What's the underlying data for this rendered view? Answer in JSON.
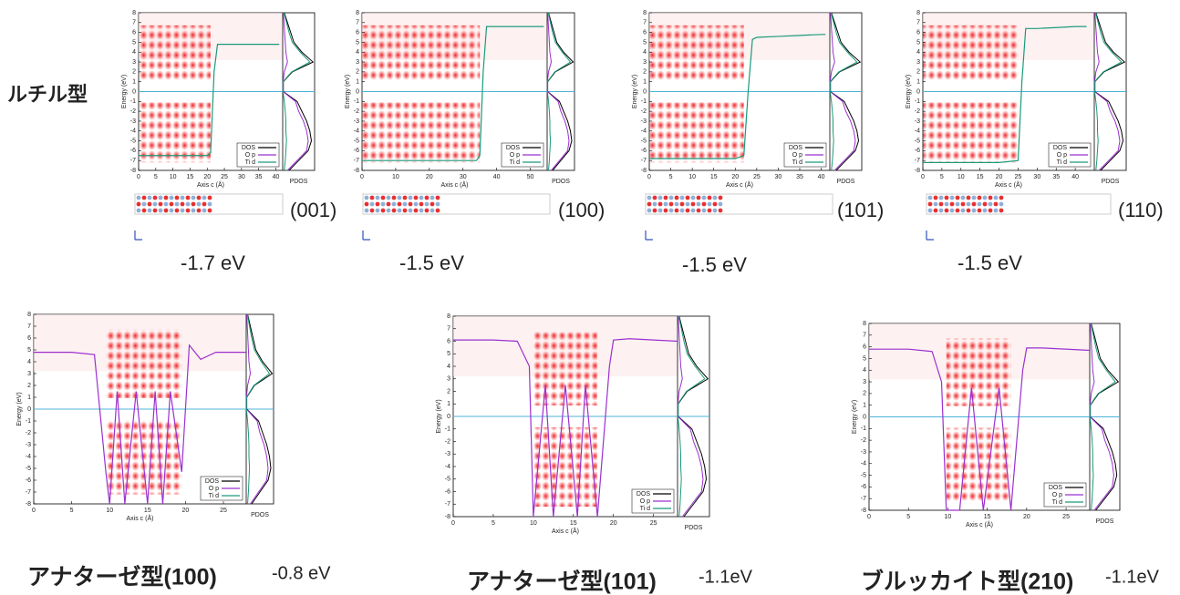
{
  "rutile_label": "ルチル型",
  "chart_data": [
    {
      "type": "line",
      "facet": "(001)",
      "energy": "-1.7 eV",
      "ylabel": "Energy (eV)",
      "xlabel": "Axis c (Å)",
      "pdos_label": "PDOS",
      "xlim": [
        0,
        42
      ],
      "xticks": [
        0,
        5,
        10,
        15,
        20,
        25,
        30,
        35,
        40
      ],
      "ylim": [
        -8,
        8
      ],
      "yticks": [
        -8,
        -7,
        -6,
        -5,
        -4,
        -3,
        -2,
        -1,
        0,
        1,
        2,
        3,
        4,
        5,
        6,
        7,
        8
      ],
      "pdos_energy": [
        -8,
        -7,
        -6,
        -5,
        -4,
        -3,
        -2,
        -1,
        0,
        1,
        2,
        3,
        4,
        5,
        6,
        7,
        8
      ],
      "pdos_xlim": [
        0,
        1
      ],
      "series": [
        {
          "name": "DOS",
          "color": "#000000",
          "pdos": [
            0.2,
            0.5,
            0.8,
            0.9,
            0.85,
            0.75,
            0.6,
            0.45,
            0.02,
            0.02,
            0.3,
            0.95,
            0.6,
            0.35,
            0.25,
            0.15,
            0.05
          ]
        },
        {
          "name": "O p",
          "color": "#9b30d0",
          "pdos": [
            0.15,
            0.45,
            0.75,
            0.8,
            0.75,
            0.65,
            0.5,
            0.4,
            0.01,
            0.01,
            0.05,
            0.15,
            0.1,
            0.08,
            0.06,
            0.04,
            0.02
          ]
        },
        {
          "name": "Ti d",
          "color": "#1a9a7a",
          "pdos": [
            0.05,
            0.08,
            0.1,
            0.12,
            0.1,
            0.1,
            0.08,
            0.05,
            0.01,
            0.01,
            0.28,
            0.85,
            0.55,
            0.3,
            0.2,
            0.12,
            0.04
          ],
          "x": [
            0,
            5,
            10,
            15,
            20,
            21,
            22,
            23,
            25,
            30,
            35,
            40,
            41
          ],
          "values": [
            -6.5,
            -6.5,
            -6.5,
            -6.5,
            -6.5,
            -6.2,
            2,
            4.8,
            4.8,
            4.8,
            4.8,
            4.8,
            4.8
          ]
        }
      ]
    },
    {
      "type": "line",
      "facet": "(100)",
      "energy": "-1.5 eV",
      "ylabel": "Energy (eV)",
      "xlabel": "Axis c (Å)",
      "pdos_label": "PDOS",
      "xlim": [
        0,
        55
      ],
      "xticks": [
        0,
        10,
        20,
        30,
        40,
        50
      ],
      "ylim": [
        -8,
        8
      ],
      "yticks": [
        -8,
        -7,
        -6,
        -5,
        -4,
        -3,
        -2,
        -1,
        0,
        1,
        2,
        3,
        4,
        5,
        6,
        7,
        8
      ],
      "pdos_energy": [
        -8,
        -7,
        -6,
        -5,
        -4,
        -3,
        -2,
        -1,
        0,
        1,
        2,
        3,
        4,
        5,
        6,
        7,
        8
      ],
      "pdos_xlim": [
        0,
        1
      ],
      "series": [
        {
          "name": "DOS",
          "color": "#000000",
          "pdos": [
            0.2,
            0.5,
            0.8,
            0.9,
            0.85,
            0.75,
            0.6,
            0.45,
            0.02,
            0.02,
            0.3,
            0.95,
            0.6,
            0.35,
            0.25,
            0.15,
            0.05
          ]
        },
        {
          "name": "O p",
          "color": "#9b30d0",
          "pdos": [
            0.15,
            0.45,
            0.75,
            0.8,
            0.75,
            0.65,
            0.5,
            0.4,
            0.01,
            0.01,
            0.05,
            0.15,
            0.1,
            0.08,
            0.06,
            0.04,
            0.02
          ]
        },
        {
          "name": "Ti d",
          "color": "#1a9a7a",
          "pdos": [
            0.05,
            0.08,
            0.1,
            0.12,
            0.1,
            0.1,
            0.08,
            0.05,
            0.01,
            0.01,
            0.28,
            0.85,
            0.55,
            0.3,
            0.2,
            0.12,
            0.04
          ],
          "x": [
            0,
            10,
            20,
            30,
            34,
            35,
            36,
            37,
            40,
            45,
            50,
            54
          ],
          "values": [
            -7,
            -7,
            -7,
            -7,
            -7,
            -6.5,
            2,
            6.6,
            6.6,
            6.6,
            6.6,
            6.6
          ]
        }
      ]
    },
    {
      "type": "line",
      "facet": "(101)",
      "energy": "-1.5 eV",
      "ylabel": "Energy (eV)",
      "xlabel": "Axis c (Å)",
      "pdos_label": "PDOS",
      "xlim": [
        0,
        42
      ],
      "xticks": [
        0,
        5,
        10,
        15,
        20,
        25,
        30,
        35,
        40
      ],
      "ylim": [
        -8,
        8
      ],
      "yticks": [
        -8,
        -7,
        -6,
        -5,
        -4,
        -3,
        -2,
        -1,
        0,
        1,
        2,
        3,
        4,
        5,
        6,
        7,
        8
      ],
      "pdos_energy": [
        -8,
        -7,
        -6,
        -5,
        -4,
        -3,
        -2,
        -1,
        0,
        1,
        2,
        3,
        4,
        5,
        6,
        7,
        8
      ],
      "pdos_xlim": [
        0,
        1
      ],
      "series": [
        {
          "name": "DOS",
          "color": "#000000",
          "pdos": [
            0.2,
            0.5,
            0.8,
            0.9,
            0.85,
            0.75,
            0.6,
            0.45,
            0.02,
            0.02,
            0.3,
            0.95,
            0.6,
            0.35,
            0.25,
            0.15,
            0.05
          ]
        },
        {
          "name": "O p",
          "color": "#9b30d0",
          "pdos": [
            0.15,
            0.45,
            0.75,
            0.8,
            0.75,
            0.65,
            0.5,
            0.4,
            0.01,
            0.01,
            0.05,
            0.15,
            0.1,
            0.08,
            0.06,
            0.04,
            0.02
          ]
        },
        {
          "name": "Ti d",
          "color": "#1a9a7a",
          "pdos": [
            0.05,
            0.08,
            0.1,
            0.12,
            0.1,
            0.1,
            0.08,
            0.05,
            0.01,
            0.01,
            0.28,
            0.85,
            0.55,
            0.3,
            0.2,
            0.12,
            0.04
          ],
          "x": [
            0,
            5,
            10,
            15,
            20,
            22,
            23,
            24,
            25,
            30,
            35,
            40,
            41
          ],
          "values": [
            -6.8,
            -6.8,
            -6.8,
            -6.8,
            -6.8,
            -6.5,
            0,
            5.3,
            5.5,
            5.6,
            5.7,
            5.8,
            5.8
          ]
        }
      ]
    },
    {
      "type": "line",
      "facet": "(110)",
      "energy": "-1.5 eV",
      "ylabel": "Energy (eV)",
      "xlabel": "Axis c (Å)",
      "pdos_label": "PDOS",
      "xlim": [
        0,
        45
      ],
      "xticks": [
        0,
        5,
        10,
        15,
        20,
        25,
        30,
        35,
        40
      ],
      "ylim": [
        -8,
        8
      ],
      "yticks": [
        -8,
        -7,
        -6,
        -5,
        -4,
        -3,
        -2,
        -1,
        0,
        1,
        2,
        3,
        4,
        5,
        6,
        7,
        8
      ],
      "pdos_energy": [
        -8,
        -7,
        -6,
        -5,
        -4,
        -3,
        -2,
        -1,
        0,
        1,
        2,
        3,
        4,
        5,
        6,
        7,
        8
      ],
      "pdos_xlim": [
        0,
        1
      ],
      "series": [
        {
          "name": "DOS",
          "color": "#000000",
          "pdos": [
            0.2,
            0.5,
            0.8,
            0.9,
            0.85,
            0.75,
            0.6,
            0.45,
            0.02,
            0.02,
            0.3,
            0.95,
            0.6,
            0.35,
            0.25,
            0.15,
            0.05
          ]
        },
        {
          "name": "O p",
          "color": "#9b30d0",
          "pdos": [
            0.15,
            0.45,
            0.75,
            0.8,
            0.75,
            0.65,
            0.5,
            0.4,
            0.01,
            0.01,
            0.05,
            0.15,
            0.1,
            0.08,
            0.06,
            0.04,
            0.02
          ]
        },
        {
          "name": "Ti d",
          "color": "#1a9a7a",
          "pdos": [
            0.05,
            0.08,
            0.1,
            0.12,
            0.1,
            0.1,
            0.08,
            0.05,
            0.01,
            0.01,
            0.28,
            0.85,
            0.55,
            0.3,
            0.2,
            0.12,
            0.04
          ],
          "x": [
            0,
            5,
            10,
            15,
            20,
            25,
            26,
            27,
            30,
            35,
            40,
            43
          ],
          "values": [
            -7.2,
            -7.2,
            -7.2,
            -7.2,
            -7.2,
            -7,
            1,
            6.4,
            6.4,
            6.5,
            6.6,
            6.6
          ]
        }
      ]
    },
    {
      "type": "line",
      "caption": "アナターゼ型(100)",
      "energy": "-0.8 eV",
      "ylabel": "Energy (eV)",
      "xlabel": "Axis c (Å)",
      "pdos_label": "PDOS",
      "xlim": [
        0,
        28
      ],
      "xticks": [
        0,
        5,
        10,
        15,
        20,
        25
      ],
      "ylim": [
        -8,
        8
      ],
      "yticks": [
        -8,
        -7,
        -6,
        -5,
        -4,
        -3,
        -2,
        -1,
        0,
        1,
        2,
        3,
        4,
        5,
        6,
        7,
        8
      ],
      "pdos_energy": [
        -8,
        -7,
        -6,
        -5,
        -4,
        -3,
        -2,
        -1,
        0,
        1,
        2,
        3,
        4,
        5,
        6,
        7,
        8
      ],
      "pdos_xlim": [
        0,
        1
      ],
      "series": [
        {
          "name": "DOS",
          "color": "#000000",
          "pdos": [
            0.2,
            0.5,
            0.8,
            0.9,
            0.85,
            0.75,
            0.6,
            0.45,
            0.02,
            0.02,
            0.3,
            0.95,
            0.6,
            0.35,
            0.25,
            0.15,
            0.05
          ]
        },
        {
          "name": "O p",
          "color": "#9b30d0",
          "pdos": [
            0.15,
            0.45,
            0.75,
            0.8,
            0.75,
            0.65,
            0.5,
            0.4,
            0.01,
            0.01,
            0.05,
            0.15,
            0.1,
            0.08,
            0.06,
            0.04,
            0.02
          ],
          "x": [
            0,
            5,
            8,
            9.5,
            10,
            11,
            12,
            13.5,
            15,
            16,
            17,
            18,
            19.5,
            20.5,
            22,
            24,
            28
          ],
          "values": [
            4.8,
            4.8,
            4.6,
            -5.3,
            -8,
            1.5,
            -8,
            1.5,
            -8,
            1.5,
            -8,
            1.5,
            -5.3,
            5.4,
            4.2,
            4.8,
            4.8
          ]
        },
        {
          "name": "Ti d",
          "color": "#1a9a7a",
          "pdos": [
            0.05,
            0.08,
            0.1,
            0.12,
            0.1,
            0.1,
            0.08,
            0.05,
            0.01,
            0.01,
            0.28,
            0.85,
            0.55,
            0.3,
            0.2,
            0.12,
            0.04
          ]
        }
      ]
    },
    {
      "type": "line",
      "caption": "アナターゼ型(101)",
      "energy": "-1.1eV",
      "ylabel": "Energy (eV)",
      "xlabel": "Axis c (Å)",
      "pdos_label": "PDOS",
      "xlim": [
        0,
        28
      ],
      "xticks": [
        0,
        5,
        10,
        15,
        20,
        25
      ],
      "ylim": [
        -8,
        8
      ],
      "yticks": [
        -8,
        -7,
        -6,
        -5,
        -4,
        -3,
        -2,
        -1,
        0,
        1,
        2,
        3,
        4,
        5,
        6,
        7,
        8
      ],
      "pdos_energy": [
        -8,
        -7,
        -6,
        -5,
        -4,
        -3,
        -2,
        -1,
        0,
        1,
        2,
        3,
        4,
        5,
        6,
        7,
        8
      ],
      "pdos_xlim": [
        0,
        1
      ],
      "series": [
        {
          "name": "DOS",
          "color": "#000000",
          "pdos": [
            0.2,
            0.5,
            0.8,
            0.9,
            0.85,
            0.75,
            0.6,
            0.45,
            0.02,
            0.02,
            0.3,
            0.95,
            0.6,
            0.35,
            0.25,
            0.15,
            0.05
          ]
        },
        {
          "name": "O p",
          "color": "#9b30d0",
          "pdos": [
            0.15,
            0.45,
            0.75,
            0.8,
            0.75,
            0.65,
            0.5,
            0.4,
            0.01,
            0.01,
            0.05,
            0.15,
            0.1,
            0.08,
            0.06,
            0.04,
            0.02
          ],
          "x": [
            0,
            5,
            8,
            9.5,
            10,
            11.5,
            12.5,
            14,
            15.5,
            16.5,
            18,
            19.5,
            20,
            22,
            28
          ],
          "values": [
            6.1,
            6.1,
            6.0,
            4,
            -8,
            2.5,
            -8,
            2.5,
            -8,
            2.5,
            -8,
            4,
            6.1,
            6.2,
            6.0
          ]
        },
        {
          "name": "Ti d",
          "color": "#1a9a7a",
          "pdos": [
            0.05,
            0.08,
            0.1,
            0.12,
            0.1,
            0.1,
            0.08,
            0.05,
            0.01,
            0.01,
            0.28,
            0.85,
            0.55,
            0.3,
            0.2,
            0.12,
            0.04
          ]
        }
      ]
    },
    {
      "type": "line",
      "caption": "ブルッカイト型(210)",
      "energy": "-1.1eV",
      "ylabel": "Energy (eV)",
      "xlabel": "Axis c (Å)",
      "pdos_label": "PDOS",
      "xlim": [
        0,
        28
      ],
      "xticks": [
        0,
        5,
        10,
        15,
        20,
        25
      ],
      "ylim": [
        -8,
        8
      ],
      "yticks": [
        -8,
        -7,
        -6,
        -5,
        -4,
        -3,
        -2,
        -1,
        0,
        1,
        2,
        3,
        4,
        5,
        6,
        7,
        8
      ],
      "pdos_energy": [
        -8,
        -7,
        -6,
        -5,
        -4,
        -3,
        -2,
        -1,
        0,
        1,
        2,
        3,
        4,
        5,
        6,
        7,
        8
      ],
      "pdos_xlim": [
        0,
        1
      ],
      "series": [
        {
          "name": "DOS",
          "color": "#000000",
          "pdos": [
            0.2,
            0.5,
            0.8,
            0.9,
            0.85,
            0.75,
            0.6,
            0.45,
            0.02,
            0.02,
            0.3,
            0.95,
            0.6,
            0.35,
            0.25,
            0.15,
            0.05
          ]
        },
        {
          "name": "O p",
          "color": "#9b30d0",
          "pdos": [
            0.15,
            0.45,
            0.75,
            0.8,
            0.75,
            0.65,
            0.5,
            0.4,
            0.01,
            0.01,
            0.05,
            0.15,
            0.1,
            0.08,
            0.06,
            0.04,
            0.02
          ],
          "x": [
            0,
            5,
            8,
            9.2,
            9.8,
            11.5,
            13,
            14.5,
            16.5,
            18,
            19.5,
            20,
            22,
            28
          ],
          "values": [
            5.8,
            5.8,
            5.6,
            3,
            -8,
            -8,
            2.5,
            -8,
            2.5,
            -8,
            4,
            5.9,
            5.9,
            5.7
          ]
        },
        {
          "name": "Ti d",
          "color": "#1a9a7a",
          "pdos": [
            0.05,
            0.08,
            0.1,
            0.12,
            0.1,
            0.1,
            0.08,
            0.05,
            0.01,
            0.01,
            0.28,
            0.85,
            0.55,
            0.3,
            0.2,
            0.12,
            0.04
          ]
        }
      ]
    }
  ]
}
